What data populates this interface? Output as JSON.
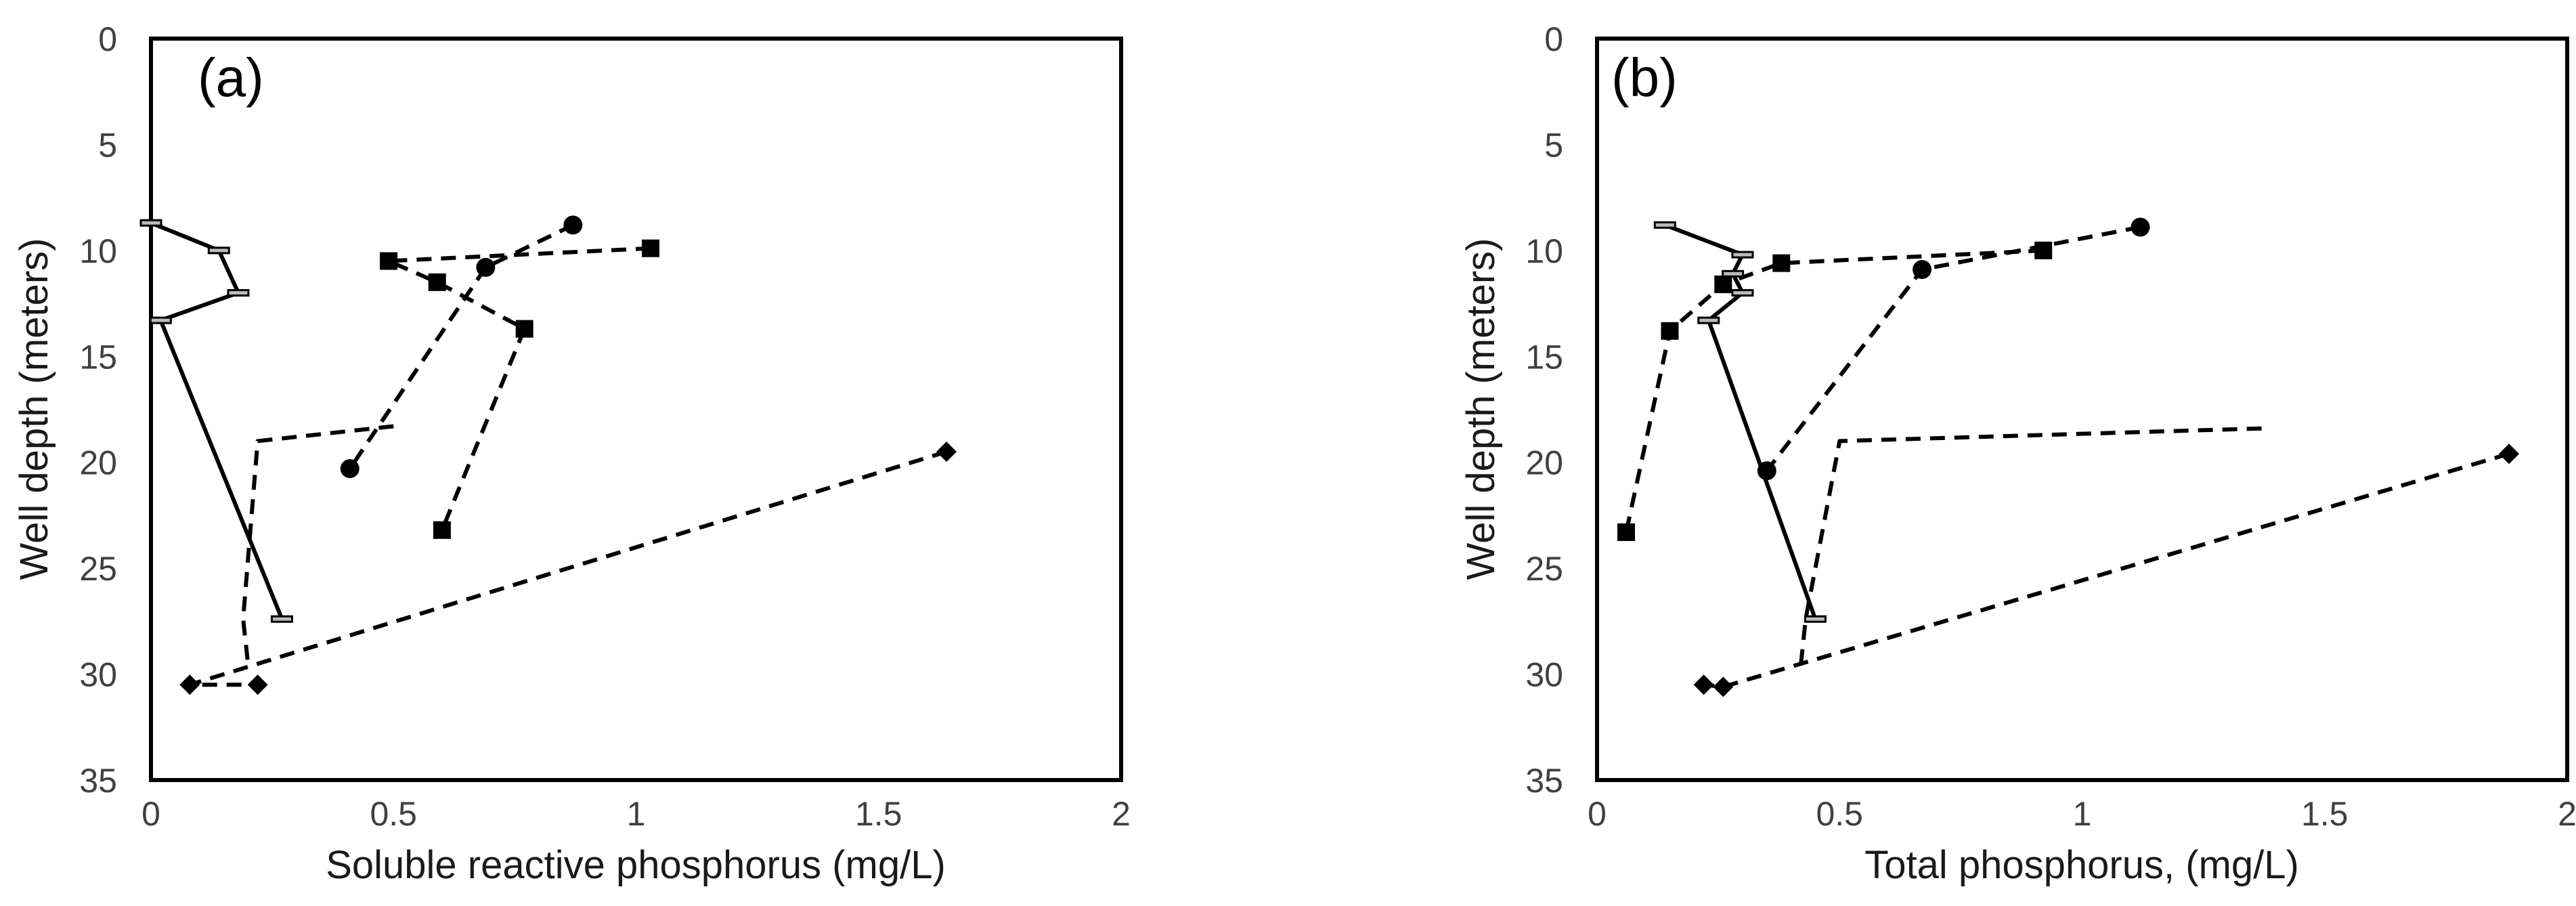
{
  "chart_data": [
    {
      "type": "line",
      "panel_label": "(a)",
      "xlabel": "Soluble reactive phosphorus (mg/L)",
      "ylabel": "Well depth (meters)",
      "xlim": [
        0,
        2
      ],
      "ylim": [
        0,
        35
      ],
      "y_inverted": true,
      "xticks": [
        "0",
        "0.5",
        "1",
        "1.5",
        "2"
      ],
      "yticks": [
        "0",
        "5",
        "10",
        "15",
        "20",
        "25",
        "30",
        "35"
      ],
      "series": [
        {
          "name": "dash-marker",
          "style": "solid",
          "marker": "dash",
          "x": [
            0.0,
            0.14,
            0.18,
            0.02,
            0.27
          ],
          "y": [
            8.7,
            10.0,
            12.0,
            13.3,
            27.4
          ]
        },
        {
          "name": "square",
          "style": "dashed",
          "marker": "square",
          "x": [
            1.03,
            0.49,
            0.59,
            0.77,
            0.6
          ],
          "y": [
            9.9,
            10.5,
            11.5,
            13.7,
            23.2
          ]
        },
        {
          "name": "circle",
          "style": "dashed",
          "marker": "circle",
          "x": [
            0.87,
            0.69,
            0.41
          ],
          "y": [
            8.8,
            10.8,
            20.3
          ]
        },
        {
          "name": "plain",
          "style": "dashed",
          "marker": "none",
          "x": [
            0.5,
            0.22,
            0.19,
            0.2
          ],
          "y": [
            18.3,
            19.0,
            27.4,
            29.5
          ]
        },
        {
          "name": "diamond",
          "style": "dashed",
          "marker": "diamond",
          "x": [
            1.64,
            0.08,
            0.22
          ],
          "y": [
            19.5,
            30.5,
            30.5
          ]
        }
      ]
    },
    {
      "type": "line",
      "panel_label": "(b)",
      "xlabel": "Total phosphorus, (mg/L)",
      "ylabel": "Well depth (meters)",
      "xlim": [
        0,
        2
      ],
      "ylim": [
        0,
        35
      ],
      "y_inverted": true,
      "xticks": [
        "0",
        "0.5",
        "1",
        "1.5",
        "2"
      ],
      "yticks": [
        "0",
        "5",
        "10",
        "15",
        "20",
        "25",
        "30",
        "35"
      ],
      "series": [
        {
          "name": "dash-marker",
          "style": "solid",
          "marker": "dash",
          "x": [
            0.14,
            0.3,
            0.28,
            0.3,
            0.23,
            0.45
          ],
          "y": [
            8.8,
            10.2,
            11.1,
            12.0,
            13.3,
            27.4
          ]
        },
        {
          "name": "square",
          "style": "dashed",
          "marker": "square",
          "x": [
            0.92,
            0.38,
            0.26,
            0.15,
            0.06
          ],
          "y": [
            10.0,
            10.6,
            11.6,
            13.8,
            23.3
          ]
        },
        {
          "name": "circle",
          "style": "dashed",
          "marker": "circle",
          "x": [
            1.12,
            0.67,
            0.35
          ],
          "y": [
            8.9,
            10.9,
            20.4
          ]
        },
        {
          "name": "plain",
          "style": "dashed",
          "marker": "none",
          "x": [
            1.37,
            0.5,
            0.43,
            0.42
          ],
          "y": [
            18.4,
            19.0,
            27.4,
            29.6
          ]
        },
        {
          "name": "diamond",
          "style": "dashed",
          "marker": "diamond",
          "x": [
            1.88,
            0.26,
            0.22
          ],
          "y": [
            19.6,
            30.6,
            30.5
          ]
        }
      ]
    }
  ]
}
